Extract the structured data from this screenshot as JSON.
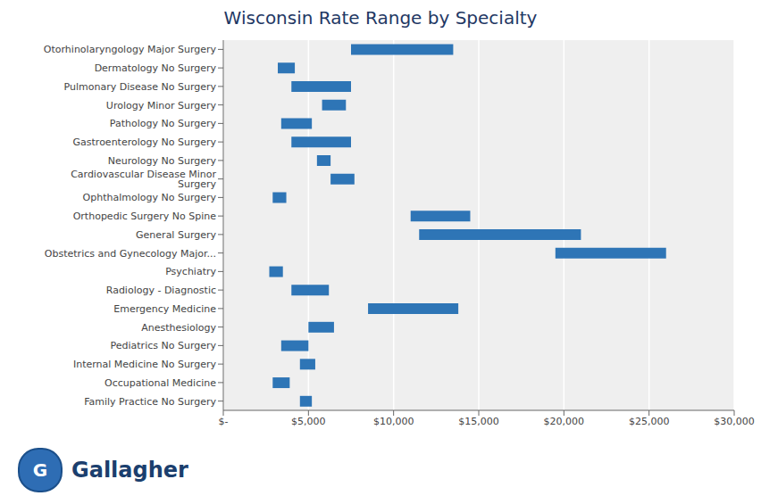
{
  "chart_data": {
    "type": "range_bar",
    "title": "Wisconsin Rate Range by Specialty",
    "orientation": "horizontal",
    "categories": [
      "Otorhinolaryngology Major Surgery",
      "Dermatology No Surgery",
      "Pulmonary Disease No Surgery",
      "Urology Minor Surgery",
      "Pathology No Surgery",
      "Gastroenterology No Surgery",
      "Neurology No Surgery",
      "Cardiovascular Disease Minor Surgery",
      "Ophthalmology No Surgery",
      "Orthopedic Surgery No Spine",
      "General Surgery",
      "Obstetrics and Gynecology Major...",
      "Psychiatry",
      "Radiology - Diagnostic",
      "Emergency Medicine",
      "Anesthesiology",
      "Pediatrics No Surgery",
      "Internal Medicine No Surgery",
      "Occupational Medicine",
      "Family Practice No Surgery"
    ],
    "values": [
      [
        7500,
        13500
      ],
      [
        3200,
        4200
      ],
      [
        4000,
        7500
      ],
      [
        5800,
        7200
      ],
      [
        3400,
        5200
      ],
      [
        4000,
        7500
      ],
      [
        5500,
        6300
      ],
      [
        6300,
        7700
      ],
      [
        2900,
        3700
      ],
      [
        11000,
        14500
      ],
      [
        11500,
        21000
      ],
      [
        19500,
        26000
      ],
      [
        2700,
        3500
      ],
      [
        4000,
        6200
      ],
      [
        8500,
        13800
      ],
      [
        5000,
        6500
      ],
      [
        3400,
        5000
      ],
      [
        4500,
        5400
      ],
      [
        2900,
        3900
      ],
      [
        4500,
        5200
      ]
    ],
    "color": "#2E75B6",
    "xlim": [
      0,
      30000
    ],
    "xticks": [
      {
        "value": 0,
        "label": "$-"
      },
      {
        "value": 5000,
        "label": "$5,000"
      },
      {
        "value": 10000,
        "label": "$10,000"
      },
      {
        "value": 15000,
        "label": "$15,000"
      },
      {
        "value": 20000,
        "label": "$20,000"
      },
      {
        "value": 25000,
        "label": "$25,000"
      },
      {
        "value": 30000,
        "label": "$30,000"
      }
    ],
    "grid": true,
    "annotations": [
      "G",
      "Gallagher"
    ]
  }
}
